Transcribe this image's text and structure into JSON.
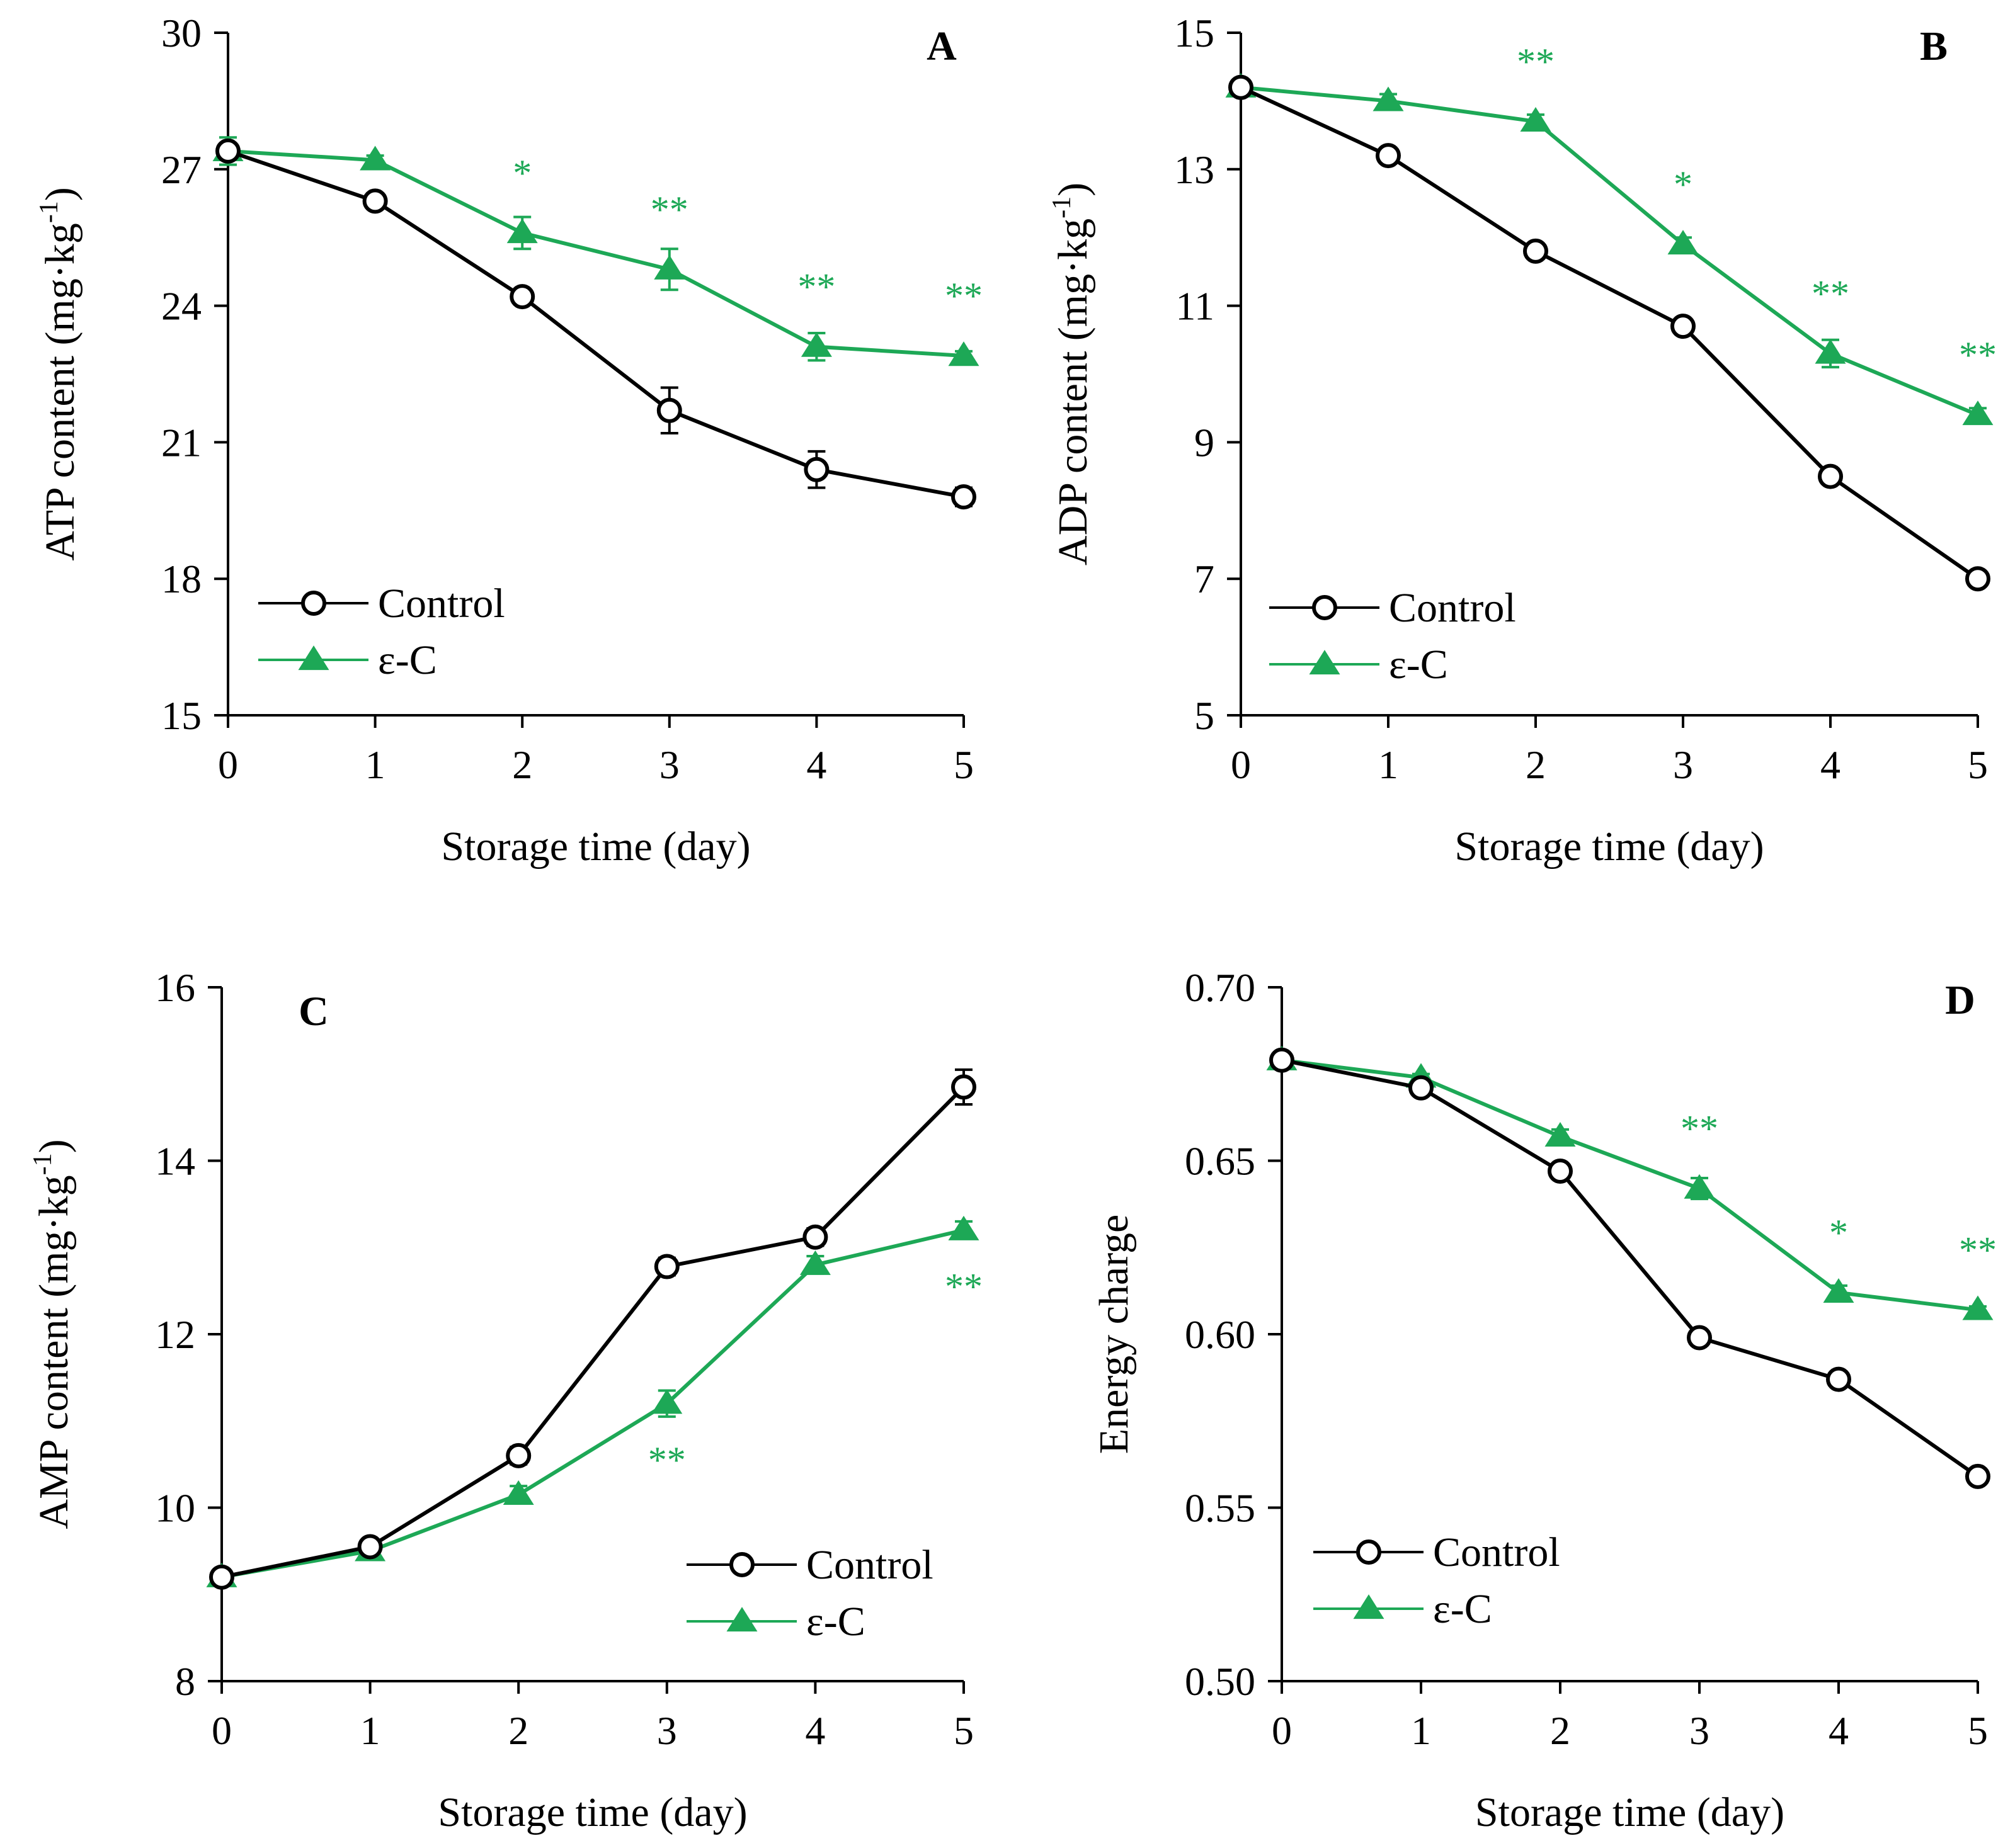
{
  "colors": {
    "control": "#000000",
    "treatment": "#1da856",
    "axis": "#000000"
  },
  "chart_data": [
    {
      "type": "line",
      "panel": "A",
      "xlabel": "Storage time (day)",
      "ylabel": "ATP content (mg·kg",
      "ylabel_sup": "-1",
      "ylabel_close": ")",
      "x": [
        0,
        1,
        2,
        3,
        4,
        5
      ],
      "x_tick_labels": [
        "0",
        "1",
        "2",
        "3",
        "4",
        "5"
      ],
      "ylim": [
        15,
        30
      ],
      "y_ticks": [
        15,
        18,
        21,
        24,
        27,
        30
      ],
      "y_tick_labels": [
        "15",
        "18",
        "21",
        "24",
        "27",
        "30"
      ],
      "legend_position": "bottom-left",
      "series": [
        {
          "name": "Control",
          "marker": "open-circle",
          "values": [
            27.4,
            26.3,
            24.2,
            21.7,
            20.4,
            19.8
          ],
          "errors": [
            0.15,
            0.1,
            0.15,
            0.5,
            0.4,
            0.2
          ]
        },
        {
          "name": "ε-C",
          "marker": "filled-triangle",
          "values": [
            27.4,
            27.2,
            25.6,
            24.8,
            23.1,
            22.9
          ],
          "errors": [
            0.3,
            0.1,
            0.35,
            0.45,
            0.3,
            0.1
          ]
        }
      ],
      "significance": [
        "",
        "",
        "*",
        "**",
        "**",
        "**"
      ]
    },
    {
      "type": "line",
      "panel": "B",
      "xlabel": "Storage time (day)",
      "ylabel": "ADP content (mg·kg",
      "ylabel_sup": "-1",
      "ylabel_close": ")",
      "x": [
        0,
        1,
        2,
        3,
        4,
        5
      ],
      "x_tick_labels": [
        "0",
        "1",
        "2",
        "3",
        "4",
        "5"
      ],
      "ylim": [
        5,
        15
      ],
      "y_ticks": [
        5,
        7,
        9,
        11,
        13,
        15
      ],
      "y_tick_labels": [
        "5",
        "7",
        "9",
        "11",
        "13",
        "15"
      ],
      "legend_position": "bottom-left",
      "series": [
        {
          "name": "Control",
          "marker": "open-circle",
          "values": [
            14.2,
            13.2,
            11.8,
            10.7,
            8.5,
            7.0
          ],
          "errors": [
            0.1,
            0.1,
            0.1,
            0.1,
            0.1,
            0.1
          ]
        },
        {
          "name": "ε-C",
          "marker": "filled-triangle",
          "values": [
            14.2,
            14.0,
            13.7,
            11.9,
            10.3,
            9.4
          ],
          "errors": [
            0.1,
            0.1,
            0.1,
            0.1,
            0.2,
            0.1
          ]
        }
      ],
      "significance": [
        "",
        "",
        "**",
        "*",
        "**",
        "**"
      ]
    },
    {
      "type": "line",
      "panel": "C",
      "xlabel": "Storage time (day)",
      "ylabel": "AMP content (mg·kg",
      "ylabel_sup": "-1",
      "ylabel_close": ")",
      "x": [
        0,
        1,
        2,
        3,
        4,
        5
      ],
      "x_tick_labels": [
        "0",
        "1",
        "2",
        "3",
        "4",
        "5"
      ],
      "ylim": [
        8,
        16
      ],
      "y_ticks": [
        8,
        10,
        12,
        14,
        16
      ],
      "y_tick_labels": [
        "8",
        "10",
        "12",
        "14",
        "16"
      ],
      "legend_position": "bottom-right",
      "series": [
        {
          "name": "Control",
          "marker": "open-circle",
          "values": [
            9.2,
            9.55,
            10.6,
            12.78,
            13.12,
            14.85
          ],
          "errors": [
            0.05,
            0.05,
            0.1,
            0.1,
            0.1,
            0.2
          ]
        },
        {
          "name": "ε-C",
          "marker": "filled-triangle",
          "values": [
            9.2,
            9.5,
            10.15,
            11.2,
            12.8,
            13.2
          ],
          "errors": [
            0.05,
            0.05,
            0.1,
            0.15,
            0.1,
            0.1
          ]
        }
      ],
      "significance": [
        "",
        "",
        "",
        "**",
        "",
        "**"
      ]
    },
    {
      "type": "line",
      "panel": "D",
      "xlabel": "Storage time (day)",
      "ylabel": "Energy charge",
      "ylabel_sup": "",
      "ylabel_close": "",
      "x": [
        0,
        1,
        2,
        3,
        4,
        5
      ],
      "x_tick_labels": [
        "0",
        "1",
        "2",
        "3",
        "4",
        "5"
      ],
      "ylim": [
        0.5,
        0.7
      ],
      "y_ticks": [
        0.5,
        0.55,
        0.6,
        0.65,
        0.7
      ],
      "y_tick_labels": [
        "0.50",
        "0.55",
        "0.60",
        "0.65",
        "0.70"
      ],
      "legend_position": "bottom-left",
      "series": [
        {
          "name": "Control",
          "marker": "open-circle",
          "values": [
            0.679,
            0.671,
            0.647,
            0.599,
            0.587,
            0.559
          ],
          "errors": [
            0.001,
            0.001,
            0.002,
            0.002,
            0.002,
            0.002
          ]
        },
        {
          "name": "ε-C",
          "marker": "filled-triangle",
          "values": [
            0.679,
            0.674,
            0.657,
            0.642,
            0.612,
            0.607
          ],
          "errors": [
            0.001,
            0.001,
            0.002,
            0.003,
            0.002,
            0.001
          ]
        }
      ],
      "significance": [
        "",
        "",
        "",
        "**",
        "*",
        "**"
      ]
    }
  ]
}
